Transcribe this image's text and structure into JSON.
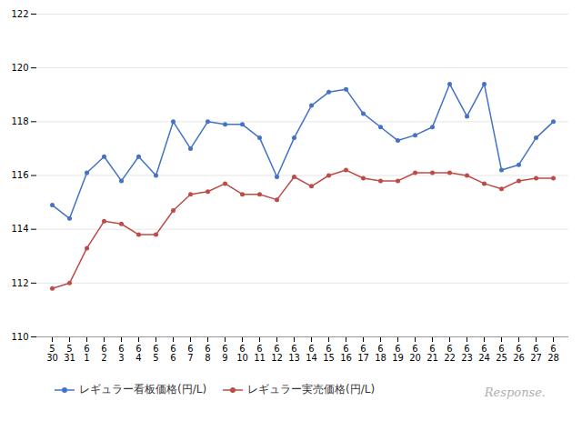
{
  "chart_data": {
    "type": "line",
    "categories": [
      "5\n30",
      "5\n31",
      "6\n1",
      "6\n2",
      "6\n3",
      "6\n4",
      "6\n5",
      "6\n6",
      "6\n7",
      "6\n8",
      "6\n9",
      "6\n10",
      "6\n11",
      "6\n12",
      "6\n13",
      "6\n14",
      "6\n15",
      "6\n16",
      "6\n17",
      "6\n18",
      "6\n19",
      "6\n20",
      "6\n21",
      "6\n22",
      "6\n23",
      "6\n24",
      "6\n25",
      "6\n26",
      "6\n27",
      "6\n28"
    ],
    "series": [
      {
        "name": "レギュラー看板価格(円/L)",
        "color": "#4472C4",
        "marker": "circle",
        "values": [
          114.9,
          114.4,
          116.1,
          116.7,
          115.8,
          116.7,
          116.0,
          118.0,
          117.0,
          118.0,
          117.9,
          117.9,
          117.4,
          115.95,
          117.4,
          118.6,
          119.1,
          119.2,
          118.3,
          117.8,
          117.3,
          117.5,
          117.8,
          119.4,
          118.2,
          119.4,
          116.2,
          116.4,
          117.4,
          118.0
        ]
      },
      {
        "name": "レギュラー実売価格(円/L)",
        "color": "#BE4B48",
        "marker": "circle",
        "values": [
          111.8,
          112.0,
          113.3,
          114.3,
          114.2,
          113.8,
          113.8,
          114.7,
          115.3,
          115.4,
          115.7,
          115.3,
          115.3,
          115.1,
          115.95,
          115.6,
          116.0,
          116.2,
          115.9,
          115.8,
          115.8,
          116.1,
          116.1,
          116.1,
          116.0,
          115.7,
          115.5,
          115.8,
          115.9,
          115.9
        ]
      }
    ],
    "ylim": [
      110,
      122
    ],
    "yticks": [
      110,
      112,
      114,
      116,
      118,
      120,
      122
    ],
    "grid": true,
    "legend": "bottom",
    "annotations": [
      {
        "text": "Response.",
        "color": "#b0b0b0"
      }
    ]
  }
}
